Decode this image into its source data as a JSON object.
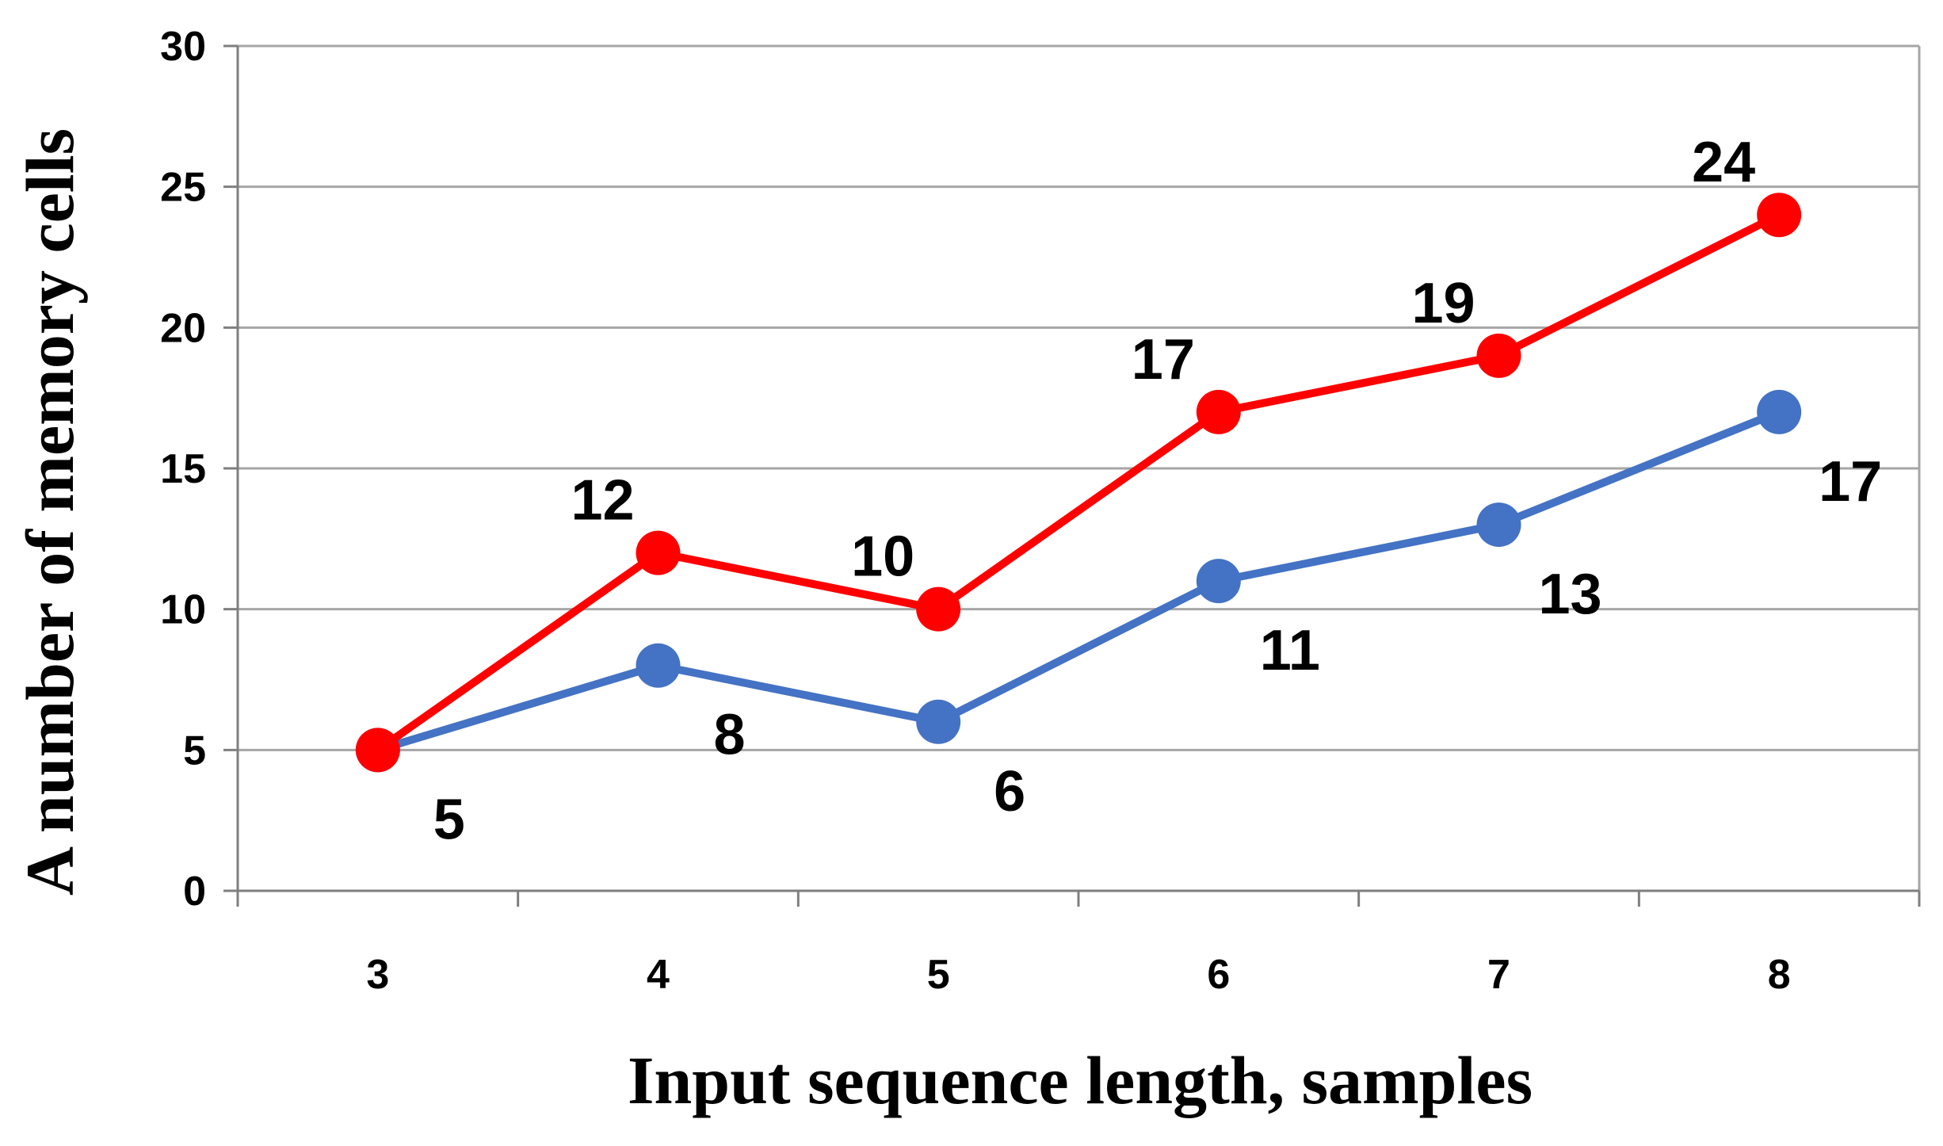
{
  "chart_data": {
    "type": "line",
    "title": "",
    "xlabel": "Input sequence length, samples",
    "ylabel": "A number of memory cells",
    "categories": [
      "3",
      "4",
      "5",
      "6",
      "7",
      "8"
    ],
    "ylim": [
      0,
      30
    ],
    "yticks": [
      "0",
      "5",
      "10",
      "15",
      "20",
      "25",
      "30"
    ],
    "grid": true,
    "legend": "none",
    "series": [
      {
        "color": "#4472C4",
        "values": [
          5,
          8,
          6,
          11,
          13,
          17
        ],
        "label_position": "below-right"
      },
      {
        "color": "#FF0000",
        "values": [
          5,
          12,
          10,
          17,
          19,
          24
        ],
        "label_position": "above-left"
      }
    ],
    "data_labels": [
      {
        "series": 0,
        "index": 0,
        "text": "5"
      },
      {
        "series": 0,
        "index": 1,
        "text": "8"
      },
      {
        "series": 0,
        "index": 2,
        "text": "6"
      },
      {
        "series": 0,
        "index": 3,
        "text": "11"
      },
      {
        "series": 0,
        "index": 4,
        "text": "13"
      },
      {
        "series": 0,
        "index": 5,
        "text": "17"
      },
      {
        "series": 1,
        "index": 1,
        "text": "12"
      },
      {
        "series": 1,
        "index": 2,
        "text": "10"
      },
      {
        "series": 1,
        "index": 3,
        "text": "17"
      },
      {
        "series": 1,
        "index": 4,
        "text": "19"
      },
      {
        "series": 1,
        "index": 5,
        "text": "24"
      }
    ]
  }
}
